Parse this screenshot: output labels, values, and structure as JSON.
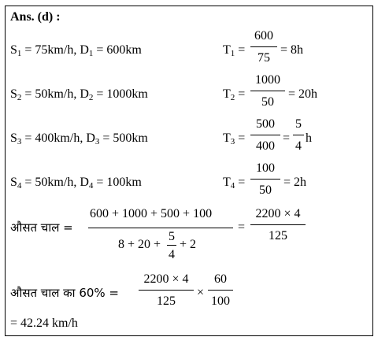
{
  "heading": "Ans. (d) :",
  "rows": [
    {
      "s": "S",
      "s_sub": "1",
      "s_val": " = 75km/h, D",
      "d_sub": "1",
      "d_val": " = 600km",
      "t": "T",
      "t_sub": "1",
      "num": "600",
      "den": "75",
      "result": "= 8h"
    },
    {
      "s": "S",
      "s_sub": "2",
      "s_val": " = 50km/h, D",
      "d_sub": "2",
      "d_val": " = 1000km",
      "t": "T",
      "t_sub": "2",
      "num": "1000",
      "den": "50",
      "result": "= 20h"
    },
    {
      "s": "S",
      "s_sub": "3",
      "s_val": " = 400km/h, D",
      "d_sub": "3",
      "d_val": " = 500km",
      "t": "T",
      "t_sub": "3",
      "num": "500",
      "den": "400",
      "result_num": "5",
      "result_den": "4",
      "result_unit": "h"
    },
    {
      "s": "S",
      "s_sub": "4",
      "s_val": " = 50km/h, D",
      "d_sub": "4",
      "d_val": " = 100km",
      "t": "T",
      "t_sub": "4",
      "num": "100",
      "den": "50",
      "result": "= 2h"
    }
  ],
  "avg": {
    "label": "औसत  चाल =",
    "numerator": "600 + 1000 + 500 + 100",
    "den_left": "8 + 20 +",
    "den_frac_num": "5",
    "den_frac_den": "4",
    "den_right": "+ 2",
    "eq": "=",
    "res_num": "2200 × 4",
    "res_den": "125"
  },
  "sixty": {
    "label": "औसत  चाल का  60% =",
    "f1_num": "2200 × 4",
    "f1_den": "125",
    "times": "×",
    "f2_num": "60",
    "f2_den": "100"
  },
  "final": "= 42.24 km/h"
}
